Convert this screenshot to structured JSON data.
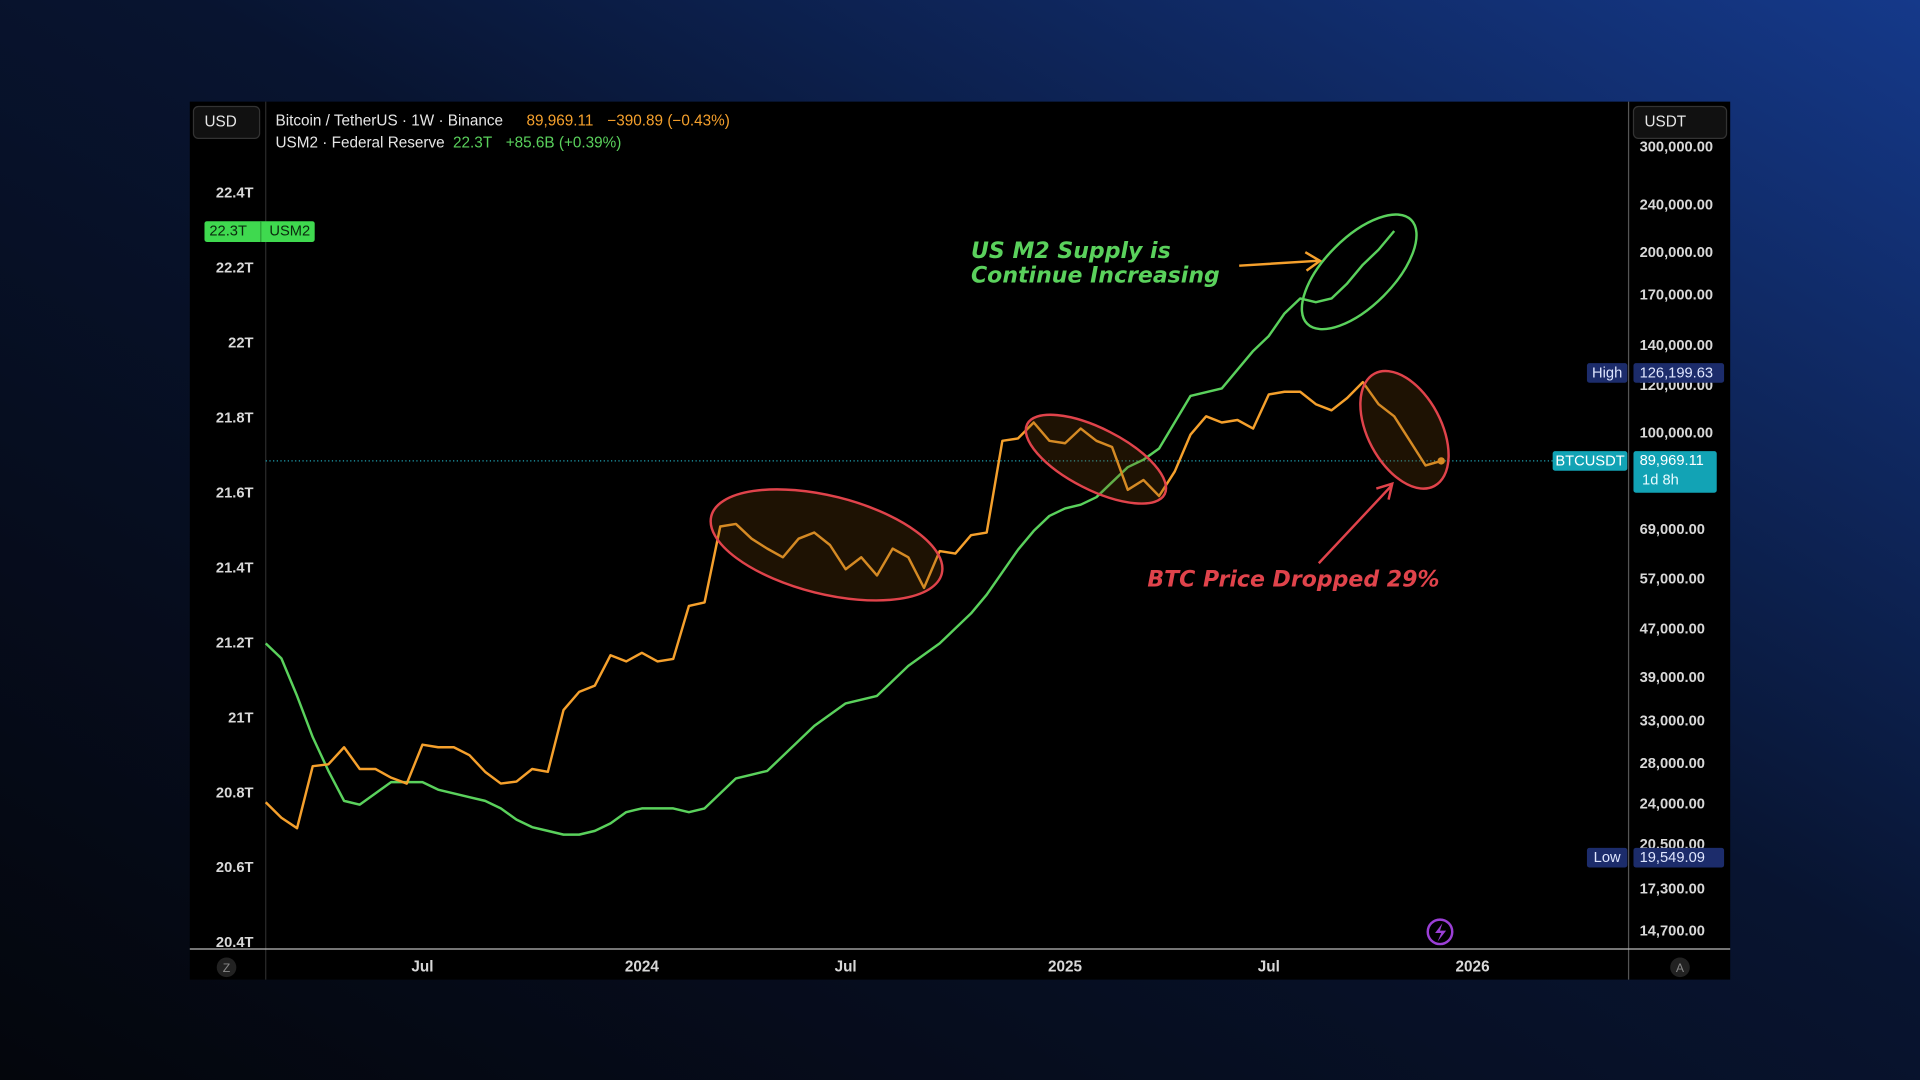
{
  "header": {
    "left_currency": "USD",
    "right_currency": "USDT",
    "legend": [
      {
        "text": "Bitcoin / TetherUS · 1W · Binance",
        "price": "89,969.11",
        "change": "−390.89 (−0.43%)"
      },
      {
        "text": "USM2 · Federal Reserve",
        "price": "22.3T",
        "change": "+85.6B (+0.39%)"
      }
    ]
  },
  "footer": {
    "left_icon": "Z",
    "right_icon": "A"
  },
  "chart_data": {
    "type": "line",
    "categories": [
      null,
      null,
      null,
      null,
      null,
      null,
      null,
      null,
      null,
      null,
      "Jul",
      null,
      null,
      null,
      null,
      null,
      null,
      null,
      null,
      null,
      null,
      null,
      null,
      null,
      "2024",
      null,
      null,
      null,
      null,
      null,
      null,
      null,
      null,
      null,
      null,
      null,
      null,
      "Jul",
      null,
      null,
      null,
      null,
      null,
      null,
      null,
      null,
      null,
      null,
      null,
      null,
      null,
      "2025",
      null,
      null,
      null,
      null,
      null,
      null,
      null,
      null,
      null,
      null,
      null,
      null,
      "Jul",
      null,
      null,
      null,
      null,
      null,
      null,
      null,
      null,
      null,
      null,
      null,
      null,
      "2026"
    ],
    "series": [
      {
        "name": "BTCUSDT",
        "color": "#f5a02c",
        "axis": "y2",
        "values": [
          24200,
          22800,
          21900,
          27800,
          28000,
          29900,
          27500,
          27500,
          26600,
          26000,
          30200,
          29900,
          29900,
          29000,
          27200,
          26000,
          26200,
          27500,
          27200,
          34500,
          37000,
          37900,
          42600,
          41600,
          43000,
          41600,
          42000,
          51500,
          52200,
          69900,
          70600,
          66700,
          64200,
          62100,
          66700,
          68300,
          65100,
          59300,
          62100,
          57900,
          64200,
          62100,
          55200,
          63600,
          63000,
          67600,
          68300,
          97200,
          98100,
          104300,
          97200,
          96300,
          101900,
          97200,
          94900,
          80500,
          83600,
          78600,
          86400,
          99500,
          106800,
          104300,
          105300,
          101900,
          116200,
          117400,
          117400,
          111900,
          109300,
          114600,
          121800,
          111900,
          106800,
          97200,
          88400,
          89969.11,
          null,
          null
        ]
      },
      {
        "name": "USM2",
        "color": "#5ad15c",
        "values": [
          21.2,
          21.16,
          21.06,
          20.95,
          20.86,
          20.78,
          20.77,
          20.8,
          20.83,
          20.83,
          20.83,
          20.81,
          20.8,
          20.79,
          20.78,
          20.76,
          20.73,
          20.71,
          20.7,
          20.69,
          20.69,
          20.7,
          20.72,
          20.75,
          20.76,
          20.76,
          20.76,
          20.75,
          20.76,
          20.8,
          20.84,
          20.85,
          20.86,
          20.9,
          20.94,
          20.98,
          21.01,
          21.04,
          21.05,
          21.06,
          21.1,
          21.14,
          21.17,
          21.2,
          21.24,
          21.28,
          21.33,
          21.39,
          21.45,
          21.5,
          21.54,
          21.56,
          21.57,
          21.59,
          21.63,
          21.67,
          21.69,
          21.72,
          21.79,
          21.86,
          21.87,
          21.88,
          21.93,
          21.98,
          22.02,
          22.08,
          22.12,
          22.11,
          22.12,
          22.16,
          22.21,
          22.25,
          22.3,
          null,
          null,
          null,
          null,
          null
        ]
      }
    ],
    "ylim": [
      20.385,
      22.645
    ],
    "yticks": [
      {
        "value": 20.4,
        "label": "20.4T"
      },
      {
        "value": 20.6,
        "label": "20.6T"
      },
      {
        "value": 20.8,
        "label": "20.8T"
      },
      {
        "value": 21,
        "label": "21T"
      },
      {
        "value": 21.2,
        "label": "21.2T"
      },
      {
        "value": 21.4,
        "label": "21.4T"
      },
      {
        "value": 21.6,
        "label": "21.6T"
      },
      {
        "value": 21.8,
        "label": "21.8T"
      },
      {
        "value": 22,
        "label": "22T"
      },
      {
        "value": 22.2,
        "label": "22.2T"
      },
      {
        "value": 22.4,
        "label": "22.4T"
      }
    ],
    "y2lim": [
      13760,
      358400
    ],
    "y2_log": true,
    "y2ticks": [
      {
        "value": 14700,
        "label": "14,700.00"
      },
      {
        "value": 17300,
        "label": "17,300.00"
      },
      {
        "value": 20500,
        "label": "20,500.00"
      },
      {
        "value": 24000,
        "label": "24,000.00"
      },
      {
        "value": 28000,
        "label": "28,000.00"
      },
      {
        "value": 33000,
        "label": "33,000.00"
      },
      {
        "value": 39000,
        "label": "39,000.00"
      },
      {
        "value": 47000,
        "label": "47,000.00"
      },
      {
        "value": 57000,
        "label": "57,000.00"
      },
      {
        "value": 69000,
        "label": "69,000.00"
      },
      {
        "value": 100000,
        "label": "100,000.00"
      },
      {
        "value": 120000,
        "label": "120,000.00"
      },
      {
        "value": 140000,
        "label": "140,000.00"
      },
      {
        "value": 170000,
        "label": "170,000.00"
      },
      {
        "value": 200000,
        "label": "200,000.00"
      },
      {
        "value": 240000,
        "label": "240,000.00"
      },
      {
        "value": 300000,
        "label": "300,000.00"
      }
    ],
    "grid": false,
    "high": {
      "label": "High",
      "value": 126199.63,
      "value_label": "126,199.63"
    },
    "low": {
      "label": "Low",
      "value": 19549.09,
      "value_label": "19,549.09"
    },
    "last_price": {
      "value": 89969.11,
      "value_label": "89,969.11",
      "countdown": "1d 8h"
    },
    "m2_last": {
      "value": 22.3,
      "value_label": "22.3T"
    },
    "annotations": [
      "US M2 Supply is",
      "Continue Increasing",
      "BTC Price Dropped 29%"
    ]
  }
}
